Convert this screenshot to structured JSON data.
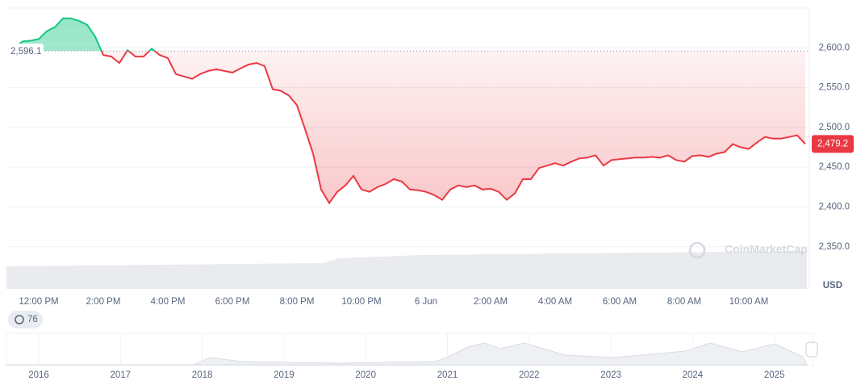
{
  "chart_data": {
    "type": "baseline-line",
    "categories": [
      null,
      null,
      null,
      null,
      "12:00 PM",
      null,
      null,
      null,
      null,
      null,
      null,
      null,
      "2:00 PM",
      null,
      null,
      null,
      null,
      null,
      null,
      null,
      "4:00 PM",
      null,
      null,
      null,
      null,
      null,
      null,
      null,
      "6:00 PM",
      null,
      null,
      null,
      null,
      null,
      null,
      null,
      "8:00 PM",
      null,
      null,
      null,
      null,
      null,
      null,
      null,
      "10:00 PM",
      null,
      null,
      null,
      null,
      null,
      null,
      null,
      "6 Jun",
      null,
      null,
      null,
      null,
      null,
      null,
      null,
      "2:00 AM",
      null,
      null,
      null,
      null,
      null,
      null,
      null,
      "4:00 AM",
      null,
      null,
      null,
      null,
      null,
      null,
      null,
      "6:00 AM",
      null,
      null,
      null,
      null,
      null,
      null,
      null,
      "8:00 AM",
      null,
      null,
      null,
      null,
      null,
      null,
      null,
      "10:00 AM",
      null,
      null,
      null,
      null,
      null,
      null,
      null
    ],
    "series": [
      {
        "values": [
          2596.1,
          2600,
          2608,
          2609,
          2611,
          2621,
          2626,
          2637,
          2637,
          2634,
          2629,
          2614,
          2591,
          2589,
          2581,
          2597,
          2589,
          2589,
          2599,
          2591,
          2587,
          2567,
          2564,
          2561,
          2567,
          2571,
          2573,
          2571,
          2569,
          2574,
          2579,
          2581,
          2577,
          2548,
          2546,
          2540,
          2528,
          2498,
          2467,
          2422,
          2405,
          2419,
          2427,
          2439,
          2422,
          2419,
          2425,
          2429,
          2435,
          2432,
          2422,
          2421,
          2419,
          2415,
          2409,
          2422,
          2427,
          2425,
          2427,
          2422,
          2423,
          2419,
          2409,
          2417,
          2435,
          2435,
          2449,
          2452,
          2455,
          2452,
          2457,
          2461,
          2462,
          2465,
          2452,
          2459,
          2460,
          2461,
          2462,
          2462,
          2463,
          2462,
          2465,
          2459,
          2457,
          2464,
          2465,
          2463,
          2467,
          2469,
          2479,
          2475,
          2473,
          2481,
          2488,
          2486,
          2486,
          2488,
          2490,
          2479.2
        ],
        "value_labels": [
          null,
          null,
          null,
          null,
          null,
          null,
          null,
          null,
          null,
          null,
          null,
          null,
          null,
          null,
          null,
          null,
          null,
          null,
          null,
          null,
          null,
          null,
          null,
          null,
          null,
          null,
          null,
          null,
          null,
          null,
          null,
          null,
          null,
          null,
          null,
          null,
          null,
          null,
          null,
          null,
          null,
          null,
          null,
          null,
          null,
          null,
          null,
          null,
          null,
          null,
          null,
          null,
          null,
          null,
          null,
          null,
          null,
          null,
          null,
          null,
          null,
          null,
          null,
          null,
          null,
          null,
          null,
          null,
          null,
          null,
          null,
          null,
          null,
          null,
          null,
          null,
          null,
          null,
          null,
          null,
          null,
          null,
          null,
          null,
          null,
          null,
          null,
          null,
          null,
          null,
          null,
          null,
          null,
          null,
          null,
          null,
          null,
          null,
          null,
          "2,479.2"
        ]
      }
    ],
    "baseline": {
      "value": 2596.1,
      "label": "2,596.1"
    },
    "up_color": "#16c784",
    "down_color": "#ea3943",
    "ylim": [
      2297,
      2650
    ],
    "yticks": [
      {
        "value": 2350,
        "label": "2,350.0"
      },
      {
        "value": 2400,
        "label": "2,400.0"
      },
      {
        "value": 2450,
        "label": "2,450.0"
      },
      {
        "value": 2500,
        "label": "2,500.0"
      },
      {
        "value": 2550,
        "label": "2,550.0"
      },
      {
        "value": 2600,
        "label": "2,600.0"
      }
    ],
    "grid": true,
    "y_unit": "USD",
    "watermark": "CoinMarketCap"
  },
  "badge": "76",
  "navigator": {
    "years": [
      "2016",
      "2017",
      "2018",
      "2019",
      "2020",
      "2021",
      "2022",
      "2023",
      "2024",
      "2025"
    ]
  }
}
